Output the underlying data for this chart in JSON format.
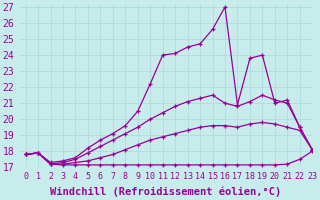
{
  "xlabel": "Windchill (Refroidissement éolien,°C)",
  "xlim": [
    -0.5,
    23
  ],
  "ylim": [
    17,
    27.2
  ],
  "yticks": [
    17,
    18,
    19,
    20,
    21,
    22,
    23,
    24,
    25,
    26,
    27
  ],
  "xticks": [
    0,
    1,
    2,
    3,
    4,
    5,
    6,
    7,
    8,
    9,
    10,
    11,
    12,
    13,
    14,
    15,
    16,
    17,
    18,
    19,
    20,
    21,
    22,
    23
  ],
  "background_color": "#c8ecec",
  "grid_color": "#a8d8d8",
  "line_color": "#990099",
  "lines": [
    {
      "x": [
        0,
        1,
        2,
        3,
        4,
        5,
        6,
        7,
        8,
        9,
        10,
        11,
        12,
        13,
        14,
        15,
        16,
        17,
        18,
        19,
        20,
        21,
        22,
        23
      ],
      "y": [
        17.8,
        17.9,
        17.2,
        17.15,
        17.15,
        17.15,
        17.15,
        17.15,
        17.15,
        17.15,
        17.15,
        17.15,
        17.15,
        17.15,
        17.15,
        17.15,
        17.15,
        17.15,
        17.15,
        17.15,
        17.15,
        17.2,
        17.5,
        18.0
      ]
    },
    {
      "x": [
        0,
        1,
        2,
        3,
        4,
        5,
        6,
        7,
        8,
        9,
        10,
        11,
        12,
        13,
        14,
        15,
        16,
        17,
        18,
        19,
        20,
        21,
        22,
        23
      ],
      "y": [
        17.8,
        17.9,
        17.2,
        17.2,
        17.3,
        17.4,
        17.6,
        17.8,
        18.1,
        18.4,
        18.7,
        18.9,
        19.1,
        19.3,
        19.5,
        19.6,
        19.6,
        19.5,
        19.7,
        19.8,
        19.7,
        19.5,
        19.3,
        18.1
      ]
    },
    {
      "x": [
        0,
        1,
        2,
        3,
        4,
        5,
        6,
        7,
        8,
        9,
        10,
        11,
        12,
        13,
        14,
        15,
        16,
        17,
        18,
        19,
        20,
        21,
        22,
        23
      ],
      "y": [
        17.8,
        17.9,
        17.2,
        17.3,
        17.5,
        17.9,
        18.3,
        18.7,
        19.1,
        19.5,
        20.0,
        20.4,
        20.8,
        21.1,
        21.3,
        21.5,
        21.0,
        20.8,
        21.1,
        21.5,
        21.2,
        21.0,
        19.5,
        18.1
      ]
    },
    {
      "x": [
        0,
        1,
        2,
        3,
        4,
        5,
        6,
        7,
        8,
        9,
        10,
        11,
        12,
        13,
        14,
        15,
        16,
        17,
        18,
        19,
        20,
        21,
        22,
        23
      ],
      "y": [
        17.8,
        17.9,
        17.3,
        17.4,
        17.6,
        18.2,
        18.7,
        19.1,
        19.6,
        20.5,
        22.2,
        24.0,
        24.1,
        24.5,
        24.7,
        25.6,
        27.0,
        20.9,
        23.8,
        24.0,
        21.0,
        21.2,
        19.5,
        18.1
      ]
    }
  ],
  "fontsize_xlabel": 7.5,
  "fontsize_yticks": 7,
  "fontsize_xticks": 6
}
